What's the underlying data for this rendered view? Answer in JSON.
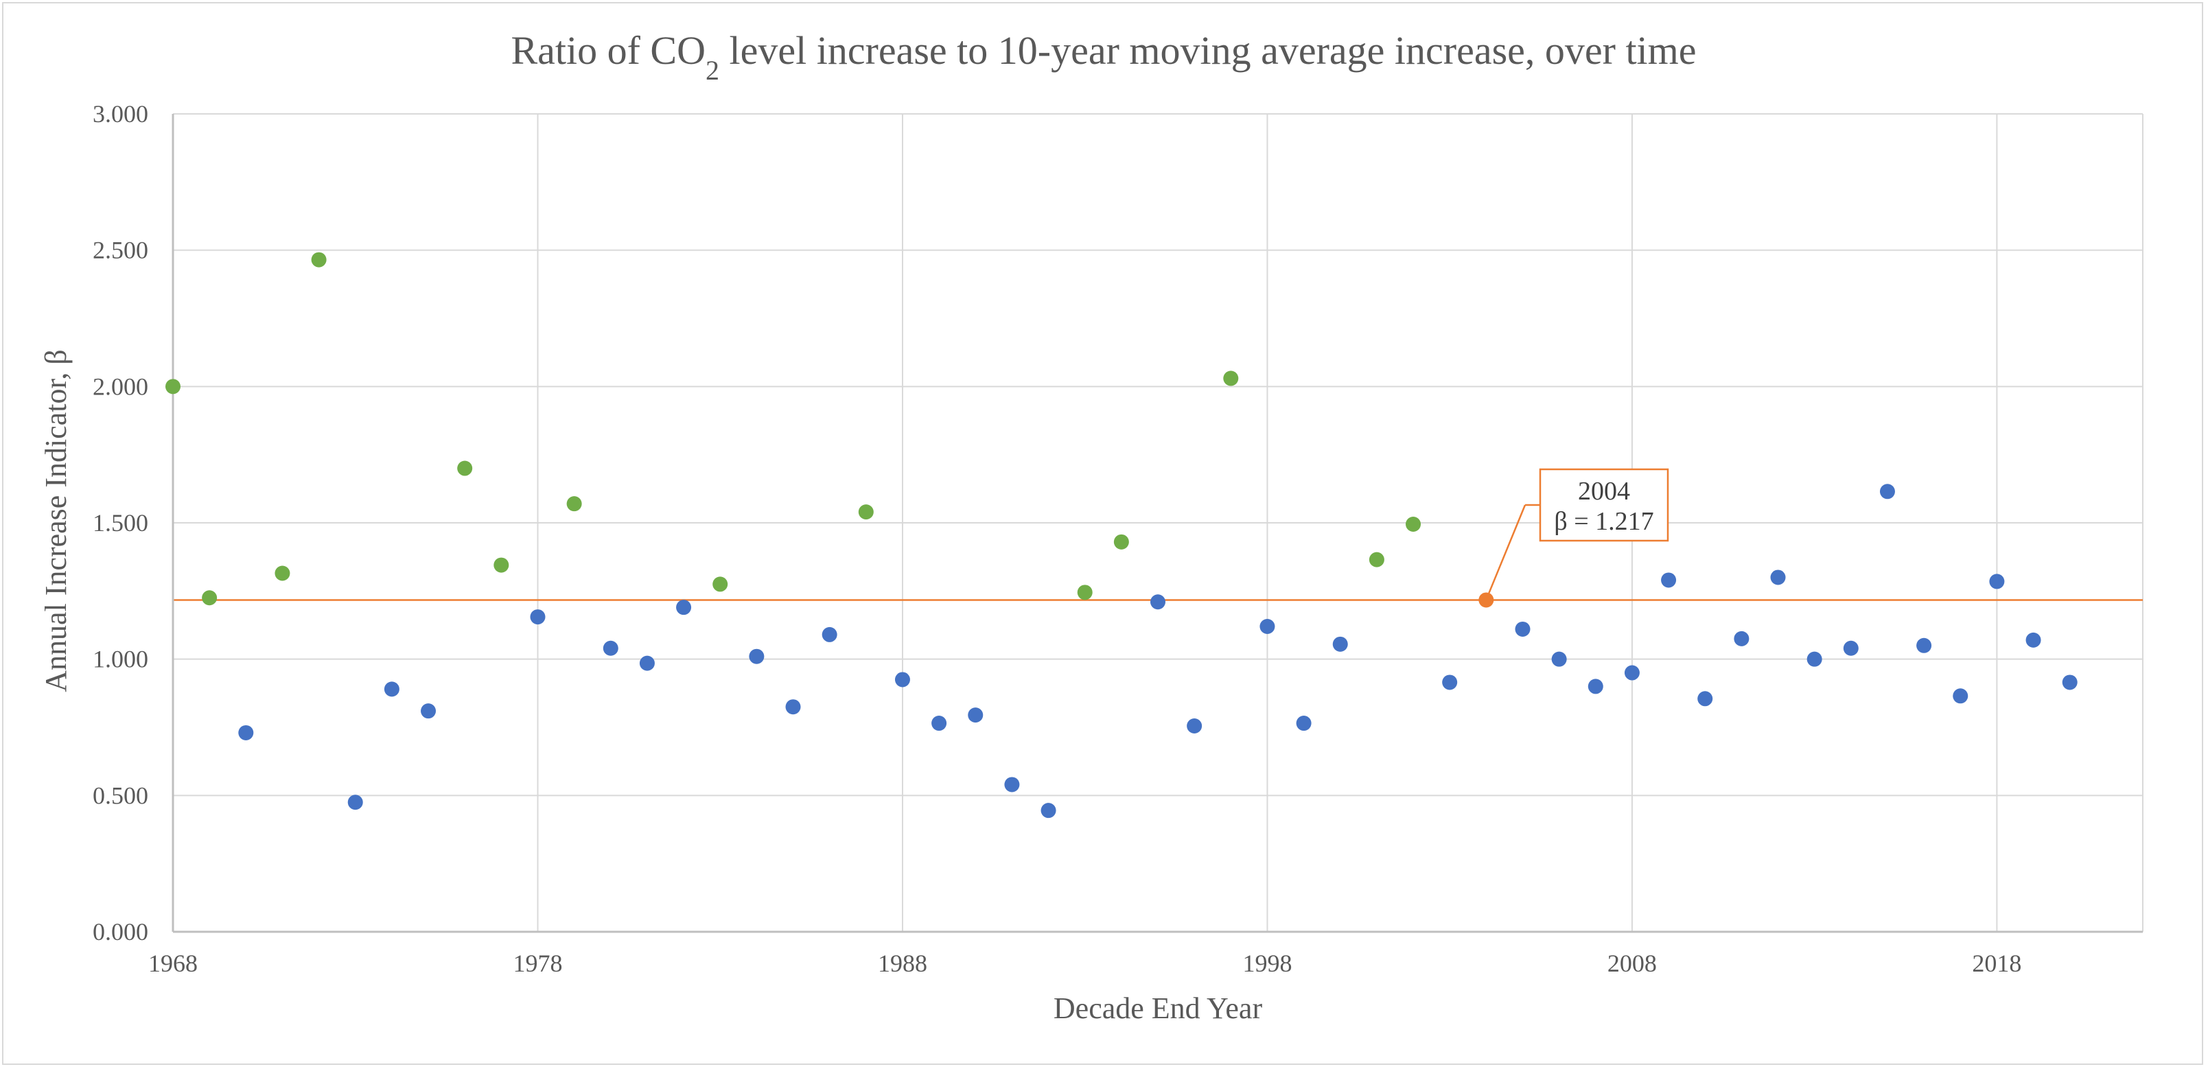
{
  "chart_data": {
    "type": "scatter",
    "title": {
      "prefix": "Ratio of CO",
      "subscript": "2",
      "suffix": " level increase to 10-year moving average increase, over time"
    },
    "xlabel": "Decade End Year",
    "ylabel": "Annual Increase Indicator, β",
    "xlim": [
      1968,
      2022
    ],
    "ylim": [
      0,
      3
    ],
    "x_ticks": [
      1968,
      1978,
      1988,
      1998,
      2008,
      2018
    ],
    "x_tick_labels": [
      "1968",
      "1978",
      "1988",
      "1998",
      "2008",
      "2018"
    ],
    "y_ticks": [
      0,
      0.5,
      1,
      1.5,
      2,
      2.5,
      3
    ],
    "y_tick_labels": [
      "0.000",
      "0.500",
      "1.000",
      "1.500",
      "2.000",
      "2.500",
      "3.000"
    ],
    "grid": true,
    "colors": {
      "above": "#70ad47",
      "below": "#4472c4",
      "highlight": "#ed7d31",
      "grid": "#d9d9d9",
      "axis": "#bfbfbf",
      "text": "#595959"
    },
    "reference_line": {
      "y": 1.217,
      "color": "#ed7d31"
    },
    "callout": {
      "x": 2004,
      "y": 1.217,
      "line1": "2004",
      "line2": "β = 1.217"
    },
    "series": [
      {
        "group": "above",
        "color": "#70ad47",
        "points": [
          {
            "x": 1968,
            "y": 2.0
          },
          {
            "x": 1969,
            "y": 1.225
          },
          {
            "x": 1971,
            "y": 1.315
          },
          {
            "x": 1972,
            "y": 2.465
          },
          {
            "x": 1976,
            "y": 1.7
          },
          {
            "x": 1977,
            "y": 1.345
          },
          {
            "x": 1979,
            "y": 1.57
          },
          {
            "x": 1983,
            "y": 1.275
          },
          {
            "x": 1987,
            "y": 1.54
          },
          {
            "x": 1993,
            "y": 1.245
          },
          {
            "x": 1994,
            "y": 1.43
          },
          {
            "x": 1997,
            "y": 2.03
          },
          {
            "x": 2001,
            "y": 1.365
          },
          {
            "x": 2002,
            "y": 1.495
          }
        ]
      },
      {
        "group": "below",
        "color": "#4472c4",
        "points": [
          {
            "x": 1970,
            "y": 0.73
          },
          {
            "x": 1973,
            "y": 0.475
          },
          {
            "x": 1974,
            "y": 0.89
          },
          {
            "x": 1975,
            "y": 0.81
          },
          {
            "x": 1978,
            "y": 1.155
          },
          {
            "x": 1980,
            "y": 1.04
          },
          {
            "x": 1981,
            "y": 0.985
          },
          {
            "x": 1982,
            "y": 1.19
          },
          {
            "x": 1984,
            "y": 1.01
          },
          {
            "x": 1985,
            "y": 0.825
          },
          {
            "x": 1986,
            "y": 1.09
          },
          {
            "x": 1988,
            "y": 0.925
          },
          {
            "x": 1989,
            "y": 0.765
          },
          {
            "x": 1990,
            "y": 0.795
          },
          {
            "x": 1991,
            "y": 0.54
          },
          {
            "x": 1992,
            "y": 0.445
          },
          {
            "x": 1995,
            "y": 1.21
          },
          {
            "x": 1996,
            "y": 0.755
          },
          {
            "x": 1998,
            "y": 1.12
          },
          {
            "x": 1999,
            "y": 0.765
          },
          {
            "x": 2000,
            "y": 1.055
          },
          {
            "x": 2003,
            "y": 0.915
          },
          {
            "x": 2005,
            "y": 1.11
          },
          {
            "x": 2006,
            "y": 1.0
          },
          {
            "x": 2007,
            "y": 0.9
          },
          {
            "x": 2008,
            "y": 0.95
          },
          {
            "x": 2009,
            "y": 1.29
          },
          {
            "x": 2010,
            "y": 0.855
          },
          {
            "x": 2011,
            "y": 1.075
          },
          {
            "x": 2012,
            "y": 1.3
          },
          {
            "x": 2013,
            "y": 1.0
          },
          {
            "x": 2014,
            "y": 1.04
          },
          {
            "x": 2015,
            "y": 1.615
          },
          {
            "x": 2016,
            "y": 1.05
          },
          {
            "x": 2017,
            "y": 0.865
          },
          {
            "x": 2018,
            "y": 1.285
          },
          {
            "x": 2019,
            "y": 1.07
          },
          {
            "x": 2020,
            "y": 0.915
          }
        ]
      },
      {
        "group": "highlight",
        "color": "#ed7d31",
        "points": [
          {
            "x": 2004,
            "y": 1.217
          }
        ]
      }
    ]
  }
}
